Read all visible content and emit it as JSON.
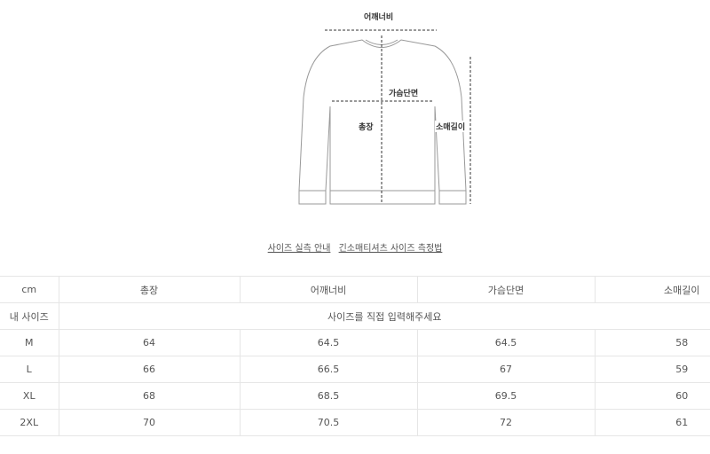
{
  "diagram": {
    "shoulder": "어깨너비",
    "chest": "가슴단면",
    "length": "총장",
    "sleeve": "소매길이"
  },
  "links": [
    "사이즈 실측 안내",
    "긴소매티셔츠 사이즈 측정법"
  ],
  "table": {
    "headers": [
      "cm",
      "총장",
      "어깨너비",
      "가슴단면",
      "소매길이"
    ],
    "my_size": {
      "label": "내 사이즈",
      "placeholder": "사이즈를 직접 입력해주세요"
    },
    "rows": [
      {
        "size": "M",
        "values": [
          "64",
          "64.5",
          "64.5",
          "58"
        ]
      },
      {
        "size": "L",
        "values": [
          "66",
          "66.5",
          "67",
          "59"
        ]
      },
      {
        "size": "XL",
        "values": [
          "68",
          "68.5",
          "69.5",
          "60"
        ]
      },
      {
        "size": "2XL",
        "values": [
          "70",
          "70.5",
          "72",
          "61"
        ]
      }
    ]
  }
}
